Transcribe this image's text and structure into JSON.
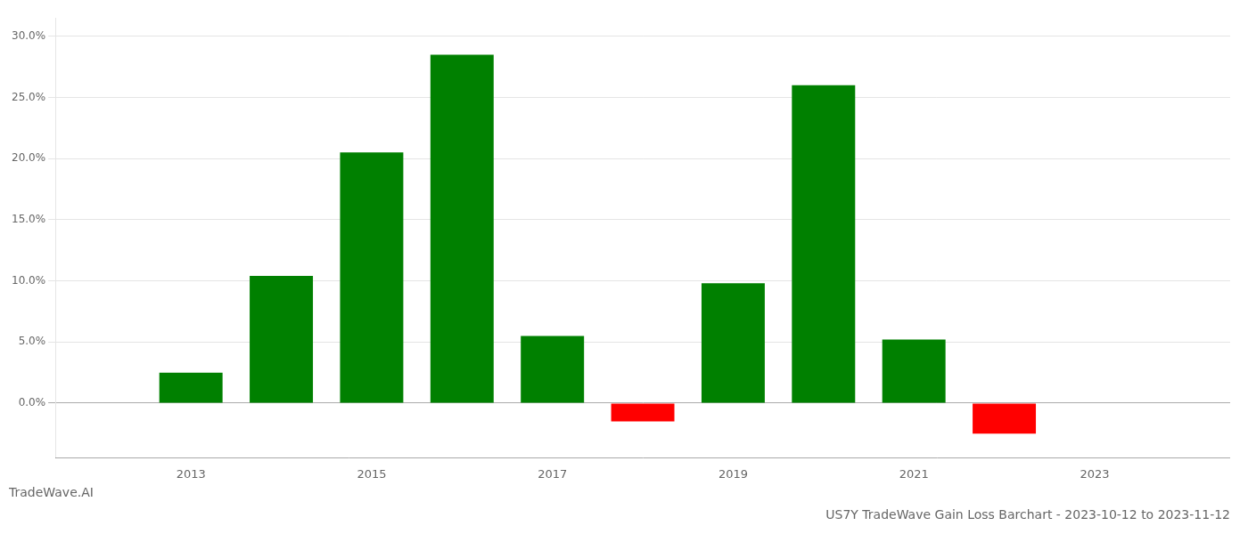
{
  "chart_data": {
    "type": "bar",
    "title": "US7Y TradeWave Gain Loss Barchart - 2023-10-12 to 2023-11-12",
    "subtitle": "TradeWave.AI",
    "x": [
      2013,
      2014,
      2015,
      2016,
      2017,
      2018,
      2019,
      2020,
      2021,
      2022
    ],
    "values": [
      0.025,
      0.104,
      0.205,
      0.285,
      0.055,
      -0.015,
      0.098,
      0.26,
      0.052,
      -0.025
    ],
    "colors": [
      "#008000",
      "#008000",
      "#008000",
      "#008000",
      "#008000",
      "#ff0000",
      "#008000",
      "#008000",
      "#008000",
      "#ff0000"
    ],
    "xlim": [
      2011.5,
      2024.5
    ],
    "xticks": [
      2013,
      2015,
      2017,
      2019,
      2021,
      2023
    ],
    "ylim": [
      -0.045,
      0.315
    ],
    "yticks": [
      {
        "value": 0.0,
        "label": "0.0%"
      },
      {
        "value": 0.05,
        "label": "5.0%"
      },
      {
        "value": 0.1,
        "label": "10.0%"
      },
      {
        "value": 0.15,
        "label": "15.0%"
      },
      {
        "value": 0.2,
        "label": "20.0%"
      },
      {
        "value": 0.25,
        "label": "25.0%"
      },
      {
        "value": 0.3,
        "label": "30.0%"
      }
    ],
    "grid": true
  }
}
